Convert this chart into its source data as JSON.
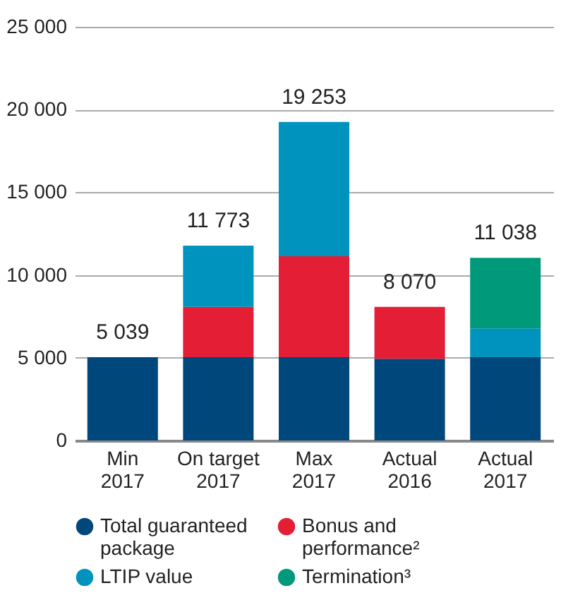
{
  "chart_data": {
    "type": "bar",
    "stacked": true,
    "categories": [
      "Min 2017",
      "On target 2017",
      "Max 2017",
      "Actual 2016",
      "Actual 2017"
    ],
    "series": [
      {
        "name": "Total guaranteed package",
        "color": "#00477b",
        "values": [
          5039,
          5039,
          5039,
          4940,
          5039
        ]
      },
      {
        "name": "Bonus and performance²",
        "color": "#e31e35",
        "values": [
          null,
          3030,
          6100,
          3130,
          null
        ]
      },
      {
        "name": "LTIP value",
        "color": "#0093bd",
        "values": [
          null,
          3704,
          8114,
          null,
          1730
        ]
      },
      {
        "name": "Termination³",
        "color": "#009a7a",
        "values": [
          null,
          null,
          null,
          null,
          4270
        ]
      }
    ],
    "totals": [
      "5 039",
      "11 773",
      "19 253",
      "8 070",
      "11 038"
    ],
    "ylim": [
      0,
      25000
    ],
    "yticks": [
      0,
      {
        "value": 5000,
        "label": "5 000"
      },
      {
        "value": 10000,
        "label": "10 000"
      },
      {
        "value": 15000,
        "label": "15 000"
      },
      {
        "value": 20000,
        "label": "20 000"
      },
      {
        "value": 25000,
        "label": "25 000"
      }
    ],
    "grid": "y",
    "legend": "bottom"
  }
}
